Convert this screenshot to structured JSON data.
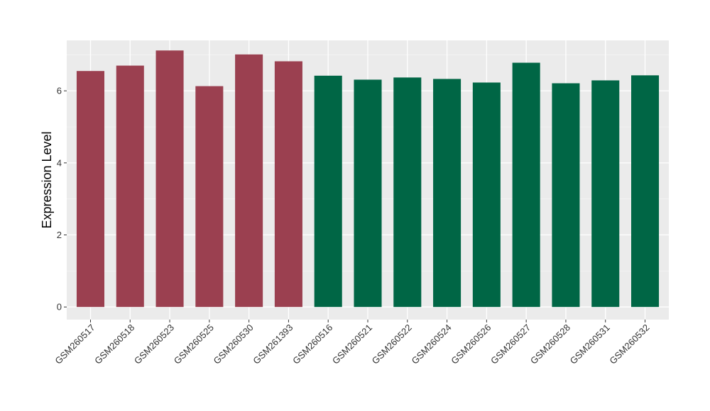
{
  "chart_data": {
    "type": "bar",
    "title": "",
    "xlabel": "",
    "ylabel": "Expression Level",
    "ylim": [
      -0.35,
      7.4
    ],
    "yticks": [
      0,
      2,
      4,
      6
    ],
    "ytick_labels": [
      "0",
      "2",
      "4",
      "6"
    ],
    "grid": true,
    "legend": "none",
    "categories": [
      "GSM260517",
      "GSM260518",
      "GSM260523",
      "GSM260525",
      "GSM260530",
      "GSM261393",
      "GSM260516",
      "GSM260521",
      "GSM260522",
      "GSM260524",
      "GSM260526",
      "GSM260527",
      "GSM260528",
      "GSM260531",
      "GSM260532"
    ],
    "values": [
      6.55,
      6.7,
      7.12,
      6.13,
      7.01,
      6.82,
      6.42,
      6.31,
      6.37,
      6.33,
      6.23,
      6.78,
      6.21,
      6.29,
      6.43
    ],
    "groups": [
      0,
      0,
      0,
      0,
      0,
      0,
      1,
      1,
      1,
      1,
      1,
      1,
      1,
      1,
      1
    ],
    "colors": {
      "group_0": "#9b4050",
      "group_1": "#006645",
      "panel_background": "#ebebeb",
      "grid_major": "#ffffff",
      "grid_minor": "#f5f5f5"
    }
  }
}
